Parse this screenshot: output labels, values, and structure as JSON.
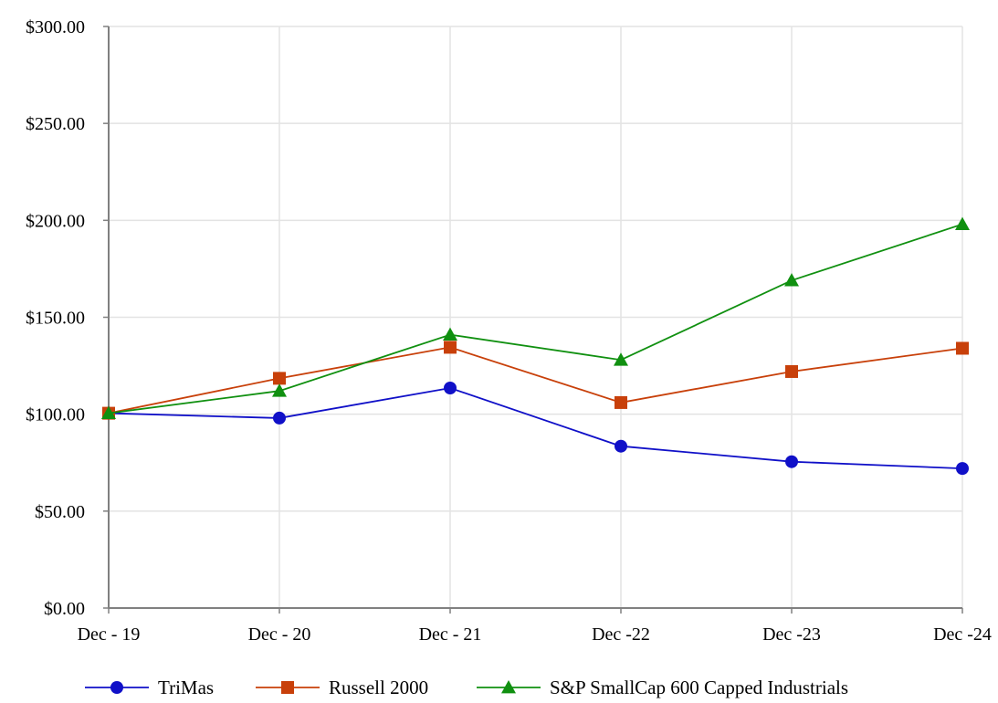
{
  "chart_data": {
    "type": "line",
    "title": "",
    "xlabel": "",
    "ylabel": "",
    "categories": [
      "Dec - 19",
      "Dec - 20",
      "Dec - 21",
      "Dec -22",
      "Dec -23",
      "Dec -24"
    ],
    "ylim": [
      0,
      300
    ],
    "yticks": [
      0,
      50,
      100,
      150,
      200,
      250,
      300
    ],
    "ytick_labels": [
      "$0.00",
      "$50.00",
      "$100.00",
      "$150.00",
      "$200.00",
      "$250.00",
      "$300.00"
    ],
    "grid": true,
    "legend_position": "bottom",
    "series": [
      {
        "name": "TriMas",
        "color": "#1010c8",
        "marker": "circle",
        "values": [
          100.5,
          98,
          113.5,
          83.5,
          75.5,
          72
        ]
      },
      {
        "name": "Russell 2000",
        "color": "#c8400a",
        "marker": "square",
        "values": [
          100.5,
          118.5,
          134.5,
          106,
          122,
          134
        ]
      },
      {
        "name": "S&P SmallCap 600 Capped Industrials",
        "color": "#109010",
        "marker": "triangle",
        "values": [
          100.5,
          112,
          141,
          128,
          169,
          198
        ]
      }
    ]
  }
}
